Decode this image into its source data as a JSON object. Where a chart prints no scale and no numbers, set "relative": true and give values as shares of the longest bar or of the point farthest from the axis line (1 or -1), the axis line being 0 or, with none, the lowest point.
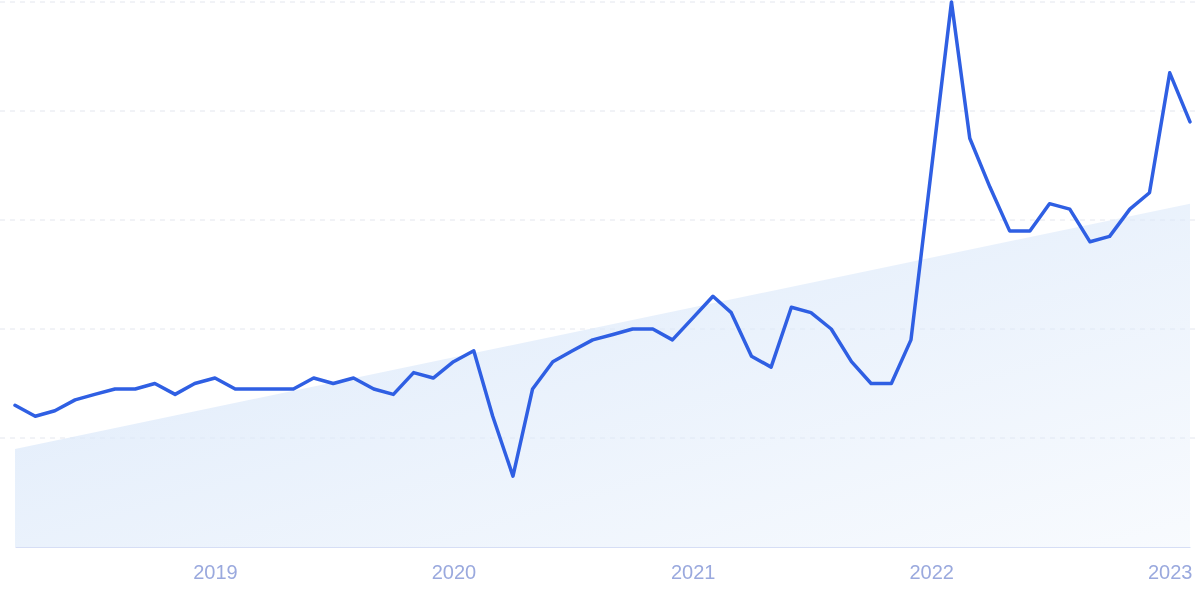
{
  "chart_data": {
    "type": "line",
    "relative": true,
    "grid": "y",
    "tick_labels": "x",
    "xlim": [
      "2018-03",
      "2023-02"
    ],
    "xticks": [
      {
        "value": "2019-01",
        "label": "2019"
      },
      {
        "value": "2020-01",
        "label": "2020"
      },
      {
        "value": "2021-01",
        "label": "2021"
      },
      {
        "value": "2022-01",
        "label": "2022"
      },
      {
        "value": "2023-01",
        "label": "2023"
      }
    ],
    "series": [
      {
        "type": "area",
        "color": "#dce9fa",
        "x": [
          "2018-03",
          "2023-02"
        ],
        "values": [
          0.18,
          0.63
        ]
      },
      {
        "color": "#2f5fe3",
        "x": [
          "2018-03",
          "2018-04",
          "2018-05",
          "2018-06",
          "2018-07",
          "2018-08",
          "2018-09",
          "2018-10",
          "2018-11",
          "2018-12",
          "2019-01",
          "2019-02",
          "2019-03",
          "2019-04",
          "2019-05",
          "2019-06",
          "2019-07",
          "2019-08",
          "2019-09",
          "2019-10",
          "2019-11",
          "2019-12",
          "2020-01",
          "2020-02",
          "2020-03",
          "2020-04",
          "2020-05",
          "2020-06",
          "2020-07",
          "2020-08",
          "2020-09",
          "2020-10",
          "2020-11",
          "2020-12",
          "2021-01",
          "2021-02",
          "2021-03",
          "2021-04",
          "2021-05",
          "2021-06",
          "2021-07",
          "2021-08",
          "2021-09",
          "2021-10",
          "2021-11",
          "2021-12",
          "2022-01",
          "2022-02",
          "2022-03",
          "2022-04",
          "2022-05",
          "2022-06",
          "2022-07",
          "2022-08",
          "2022-09",
          "2022-10",
          "2022-11",
          "2022-12",
          "2023-01",
          "2023-02"
        ],
        "values": [
          0.26,
          0.24,
          0.25,
          0.27,
          0.28,
          0.29,
          0.29,
          0.3,
          0.28,
          0.3,
          0.31,
          0.29,
          0.29,
          0.29,
          0.29,
          0.31,
          0.3,
          0.31,
          0.29,
          0.28,
          0.32,
          0.31,
          0.34,
          0.36,
          0.24,
          0.13,
          0.29,
          0.34,
          0.36,
          0.38,
          0.39,
          0.4,
          0.4,
          0.38,
          0.42,
          0.46,
          0.43,
          0.35,
          0.33,
          0.44,
          0.43,
          0.4,
          0.34,
          0.3,
          0.3,
          0.38,
          0.69,
          1,
          0.75,
          0.66,
          0.58,
          0.58,
          0.63,
          0.62,
          0.56,
          0.57,
          0.62,
          0.65,
          0.87,
          0.78
        ]
      }
    ]
  }
}
